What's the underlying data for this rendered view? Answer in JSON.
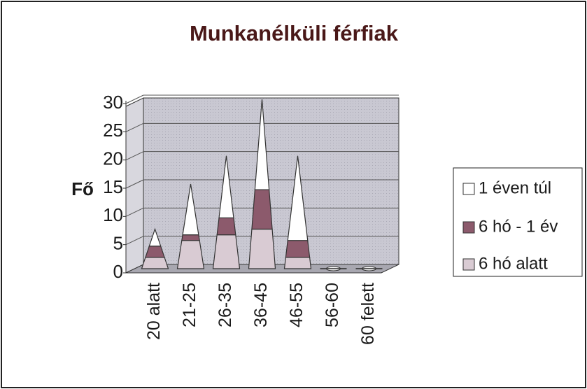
{
  "chart_data": {
    "type": "cone",
    "title": "Munkanélküli férfiak",
    "y_label": "Fő",
    "categories": [
      "20 alatt",
      "21-25",
      "26-35",
      "36-45",
      "46-55",
      "56-60",
      "60 felett"
    ],
    "series": [
      {
        "name": "6 hó alatt",
        "color": "#d9cbd3",
        "values": [
          2,
          5,
          6,
          7,
          2,
          0,
          0
        ]
      },
      {
        "name": "6 hó - 1 év",
        "color": "#8c5a6c",
        "values": [
          2,
          1,
          3,
          7,
          3,
          0,
          0
        ]
      },
      {
        "name": "1 éven túl",
        "color": "#ffffff",
        "values": [
          3,
          9,
          11,
          16,
          15,
          0,
          0
        ]
      }
    ],
    "ylim": [
      0,
      30
    ],
    "yticks": [
      0,
      5,
      10,
      15,
      20,
      25,
      30
    ],
    "grid": true,
    "legend": "right"
  }
}
